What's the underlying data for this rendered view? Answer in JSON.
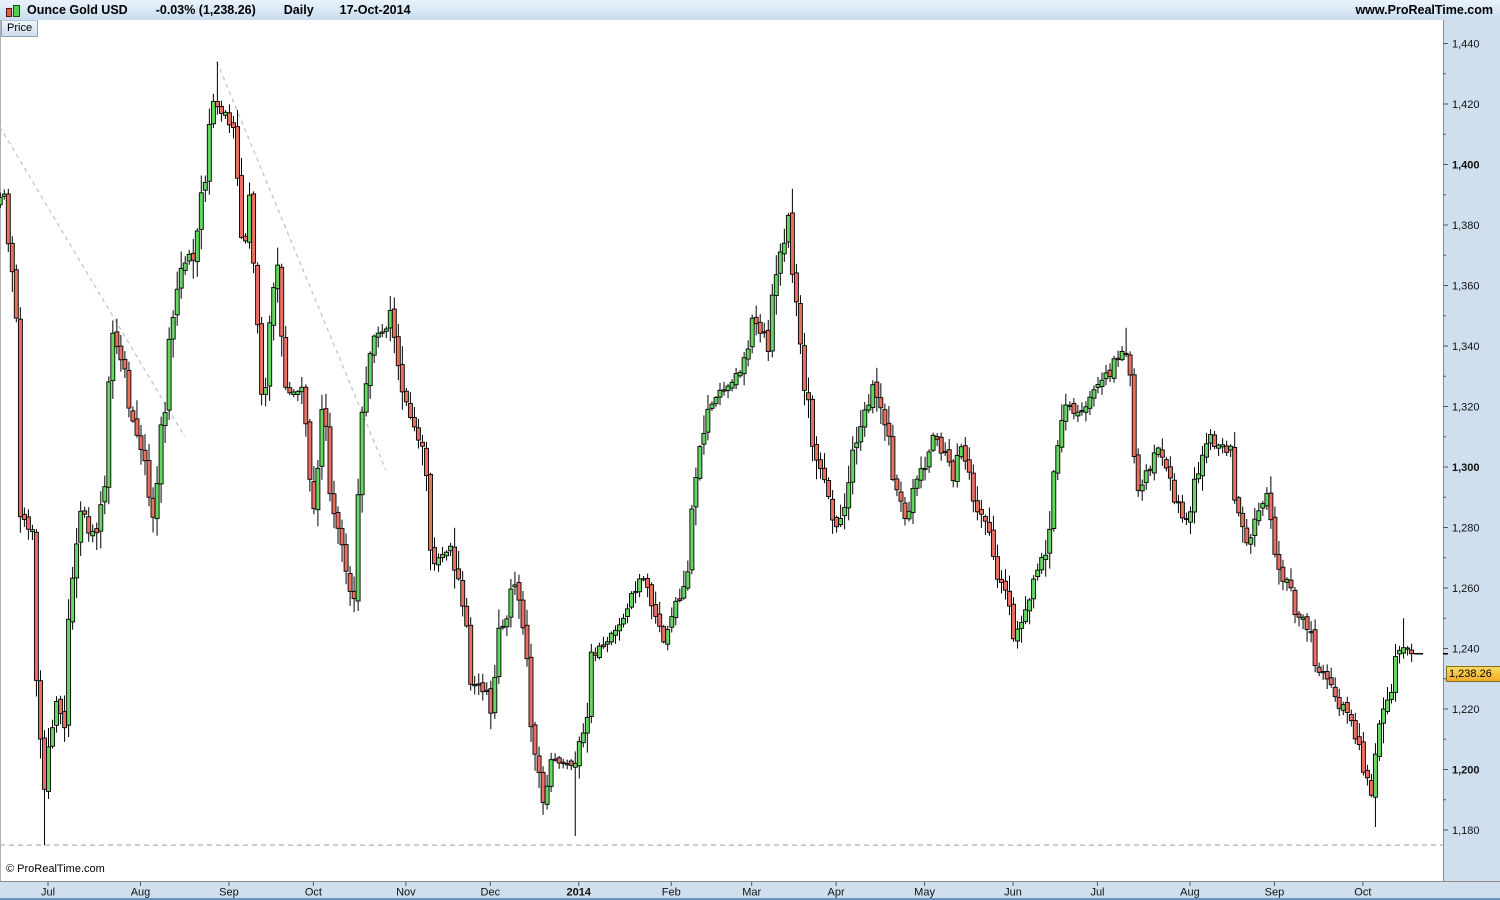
{
  "titlebar": {
    "instrument": "Ounce Gold USD",
    "change": "-0.03% (1,238.26)",
    "timeframe": "Daily",
    "date": "17-Oct-2014",
    "site": "www.ProRealTime.com"
  },
  "price_tab_label": "Price",
  "copyright": "© ProRealTime.com",
  "colors": {
    "up": "#63d75f",
    "down": "#ea6f62",
    "outline": "#000000",
    "wick": "#000000",
    "axis_bg": "#cfdfed",
    "axis_border": "#8c8c8c",
    "axis_text": "#111111",
    "bottom_edge": "#6b92c4",
    "trendline": "#c4c4c4",
    "support_line": "#b0b0b0",
    "tag_bg": "#f6c63e"
  },
  "price_axis": {
    "tick_min": 1180,
    "tick_max": 1440,
    "major_step": 20,
    "minor_step": 10,
    "bold_ticks": [
      1200,
      1300,
      1400
    ],
    "last_price": 1238.26,
    "last_price_label": "1,238.26"
  },
  "time_axis": {
    "months": [
      {
        "label": "Jul",
        "date": "2013-07-01"
      },
      {
        "label": "Aug",
        "date": "2013-08-01"
      },
      {
        "label": "Sep",
        "date": "2013-09-01"
      },
      {
        "label": "Oct",
        "date": "2013-10-01"
      },
      {
        "label": "Nov",
        "date": "2013-11-01"
      },
      {
        "label": "Dec",
        "date": "2013-12-01"
      },
      {
        "label": "2014",
        "date": "2014-01-01",
        "bold": true
      },
      {
        "label": "Feb",
        "date": "2014-02-01"
      },
      {
        "label": "Mar",
        "date": "2014-03-01"
      },
      {
        "label": "Apr",
        "date": "2014-04-01"
      },
      {
        "label": "May",
        "date": "2014-05-01"
      },
      {
        "label": "Jun",
        "date": "2014-06-01"
      },
      {
        "label": "Jul",
        "date": "2014-07-01"
      },
      {
        "label": "Aug",
        "date": "2014-08-01"
      },
      {
        "label": "Sep",
        "date": "2014-09-01"
      },
      {
        "label": "Oct",
        "date": "2014-10-01"
      }
    ]
  },
  "chart_data": {
    "type": "candlestick",
    "title": "Ounce Gold USD - Daily - 17-Oct-2014",
    "x_range": {
      "start": "2013-06-12",
      "end": "2014-10-17"
    },
    "ylim": [
      1174,
      1447
    ],
    "last_close": 1238.26,
    "price_path": [
      [
        "2013-06-12",
        1388
      ],
      [
        "2013-06-14",
        1390
      ],
      [
        "2013-06-18",
        1366
      ],
      [
        "2013-06-19",
        1351
      ],
      [
        "2013-06-20",
        1286
      ],
      [
        "2013-06-25",
        1277
      ],
      [
        "2013-06-26",
        1230
      ],
      [
        "2013-06-28",
        1192
      ],
      [
        "2013-07-03",
        1222
      ],
      [
        "2013-07-05",
        1213
      ],
      [
        "2013-07-11",
        1285
      ],
      [
        "2013-07-17",
        1277
      ],
      [
        "2013-07-19",
        1296
      ],
      [
        "2013-07-23",
        1342
      ],
      [
        "2013-07-26",
        1334
      ],
      [
        "2013-07-31",
        1313
      ],
      [
        "2013-08-06",
        1283
      ],
      [
        "2013-08-08",
        1312
      ],
      [
        "2013-08-15",
        1366
      ],
      [
        "2013-08-20",
        1371
      ],
      [
        "2013-08-23",
        1396
      ],
      [
        "2013-08-27",
        1420
      ],
      [
        "2013-08-28",
        1418
      ],
      [
        "2013-09-03",
        1412
      ],
      [
        "2013-09-05",
        1373
      ],
      [
        "2013-09-09",
        1387
      ],
      [
        "2013-09-12",
        1322
      ],
      [
        "2013-09-18",
        1364
      ],
      [
        "2013-09-20",
        1325
      ],
      [
        "2013-09-26",
        1324
      ],
      [
        "2013-10-01",
        1287
      ],
      [
        "2013-10-03",
        1317
      ],
      [
        "2013-10-11",
        1268
      ],
      [
        "2013-10-15",
        1255
      ],
      [
        "2013-10-17",
        1320
      ],
      [
        "2013-10-22",
        1342
      ],
      [
        "2013-10-28",
        1352
      ],
      [
        "2013-10-31",
        1323
      ],
      [
        "2013-11-07",
        1308
      ],
      [
        "2013-11-12",
        1268
      ],
      [
        "2013-11-18",
        1275
      ],
      [
        "2013-11-25",
        1231
      ],
      [
        "2013-12-02",
        1220
      ],
      [
        "2013-12-04",
        1247
      ],
      [
        "2013-12-10",
        1261
      ],
      [
        "2013-12-19",
        1188
      ],
      [
        "2013-12-23",
        1203
      ],
      [
        "2013-12-31",
        1202
      ],
      [
        "2014-01-06",
        1238
      ],
      [
        "2014-01-14",
        1245
      ],
      [
        "2014-01-23",
        1264
      ],
      [
        "2014-01-30",
        1243
      ],
      [
        "2014-02-06",
        1258
      ],
      [
        "2014-02-14",
        1319
      ],
      [
        "2014-02-26",
        1331
      ],
      [
        "2014-03-03",
        1350
      ],
      [
        "2014-03-07",
        1340
      ],
      [
        "2014-03-14",
        1383
      ],
      [
        "2014-03-17",
        1367
      ],
      [
        "2014-03-20",
        1328
      ],
      [
        "2014-03-27",
        1295
      ],
      [
        "2014-04-01",
        1280
      ],
      [
        "2014-04-10",
        1319
      ],
      [
        "2014-04-14",
        1327
      ],
      [
        "2014-04-24",
        1284
      ],
      [
        "2014-05-05",
        1310
      ],
      [
        "2014-05-12",
        1296
      ],
      [
        "2014-05-14",
        1306
      ],
      [
        "2014-05-27",
        1265
      ],
      [
        "2014-06-02",
        1244
      ],
      [
        "2014-06-12",
        1274
      ],
      [
        "2014-06-19",
        1320
      ],
      [
        "2014-06-24",
        1318
      ],
      [
        "2014-07-01",
        1327
      ],
      [
        "2014-07-10",
        1339
      ],
      [
        "2014-07-15",
        1294
      ],
      [
        "2014-07-22",
        1306
      ],
      [
        "2014-07-31",
        1282
      ],
      [
        "2014-08-08",
        1310
      ],
      [
        "2014-08-15",
        1305
      ],
      [
        "2014-08-21",
        1275
      ],
      [
        "2014-08-28",
        1290
      ],
      [
        "2014-09-02",
        1265
      ],
      [
        "2014-09-10",
        1249
      ],
      [
        "2014-09-16",
        1234
      ],
      [
        "2014-09-23",
        1222
      ],
      [
        "2014-09-30",
        1208
      ],
      [
        "2014-10-03",
        1191
      ],
      [
        "2014-10-06",
        1207
      ],
      [
        "2014-10-08",
        1221
      ],
      [
        "2014-10-13",
        1237
      ],
      [
        "2014-10-15",
        1241
      ],
      [
        "2014-10-17",
        1238.26
      ]
    ],
    "spikes": [
      {
        "date": "2013-06-28",
        "low": 1175
      },
      {
        "date": "2013-08-28",
        "high": 1434
      },
      {
        "date": "2013-10-15",
        "low": 1252
      },
      {
        "date": "2013-12-19",
        "low": 1185
      },
      {
        "date": "2013-12-31",
        "low": 1178
      },
      {
        "date": "2014-03-17",
        "high": 1392
      },
      {
        "date": "2014-07-10",
        "high": 1346
      },
      {
        "date": "2014-10-06",
        "low": 1181
      },
      {
        "date": "2014-10-15",
        "high": 1250
      }
    ],
    "trendlines": [
      {
        "from": [
          "2013-06-11",
          1417
        ],
        "to": [
          "2013-08-16",
          1310
        ]
      },
      {
        "from": [
          "2013-08-28",
          1434
        ],
        "to": [
          "2013-10-25",
          1299
        ]
      }
    ],
    "support_line": {
      "price": 1175
    }
  }
}
